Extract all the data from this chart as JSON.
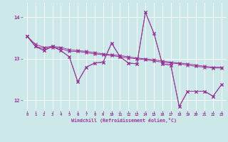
{
  "bg_color": "#cce8e8",
  "line_color": "#993399",
  "grid_color": "#ffffff",
  "xlim": [
    -0.5,
    23.5
  ],
  "ylim": [
    11.75,
    14.35
  ],
  "xticks": [
    0,
    1,
    2,
    3,
    4,
    5,
    6,
    7,
    8,
    9,
    10,
    11,
    12,
    13,
    14,
    15,
    16,
    17,
    18,
    19,
    20,
    21,
    22,
    23
  ],
  "yticks": [
    12,
    13,
    14
  ],
  "xlabel": "Windchill (Refroidissement éolien,°C)",
  "line1_y": [
    13.55,
    13.3,
    13.25,
    13.28,
    13.25,
    13.18,
    13.18,
    13.15,
    13.12,
    13.1,
    13.08,
    13.05,
    13.02,
    13.0,
    12.98,
    12.95,
    12.92,
    12.9,
    12.88,
    12.85,
    12.82,
    12.8,
    12.78,
    12.78
  ],
  "line2_y": [
    13.55,
    13.35,
    13.28,
    13.3,
    13.28,
    13.22,
    13.2,
    13.18,
    13.15,
    13.12,
    13.1,
    13.08,
    13.05,
    13.02,
    13.0,
    12.98,
    12.95,
    12.92,
    12.9,
    12.88,
    12.85,
    12.82,
    12.8,
    12.8
  ],
  "line3_y": [
    13.55,
    13.3,
    13.2,
    13.3,
    13.2,
    13.05,
    12.45,
    12.8,
    12.9,
    12.92,
    13.38,
    13.05,
    12.9,
    12.88,
    14.12,
    13.62,
    12.88,
    12.85,
    11.85,
    12.22,
    12.22,
    12.22,
    12.1,
    12.38
  ],
  "line4_y": [
    13.55,
    13.3,
    13.2,
    13.3,
    13.2,
    13.05,
    12.45,
    12.8,
    12.9,
    12.92,
    13.38,
    13.05,
    12.9,
    12.88,
    14.12,
    13.62,
    12.88,
    12.85,
    11.85,
    12.22,
    12.22,
    12.22,
    12.1,
    12.38
  ]
}
